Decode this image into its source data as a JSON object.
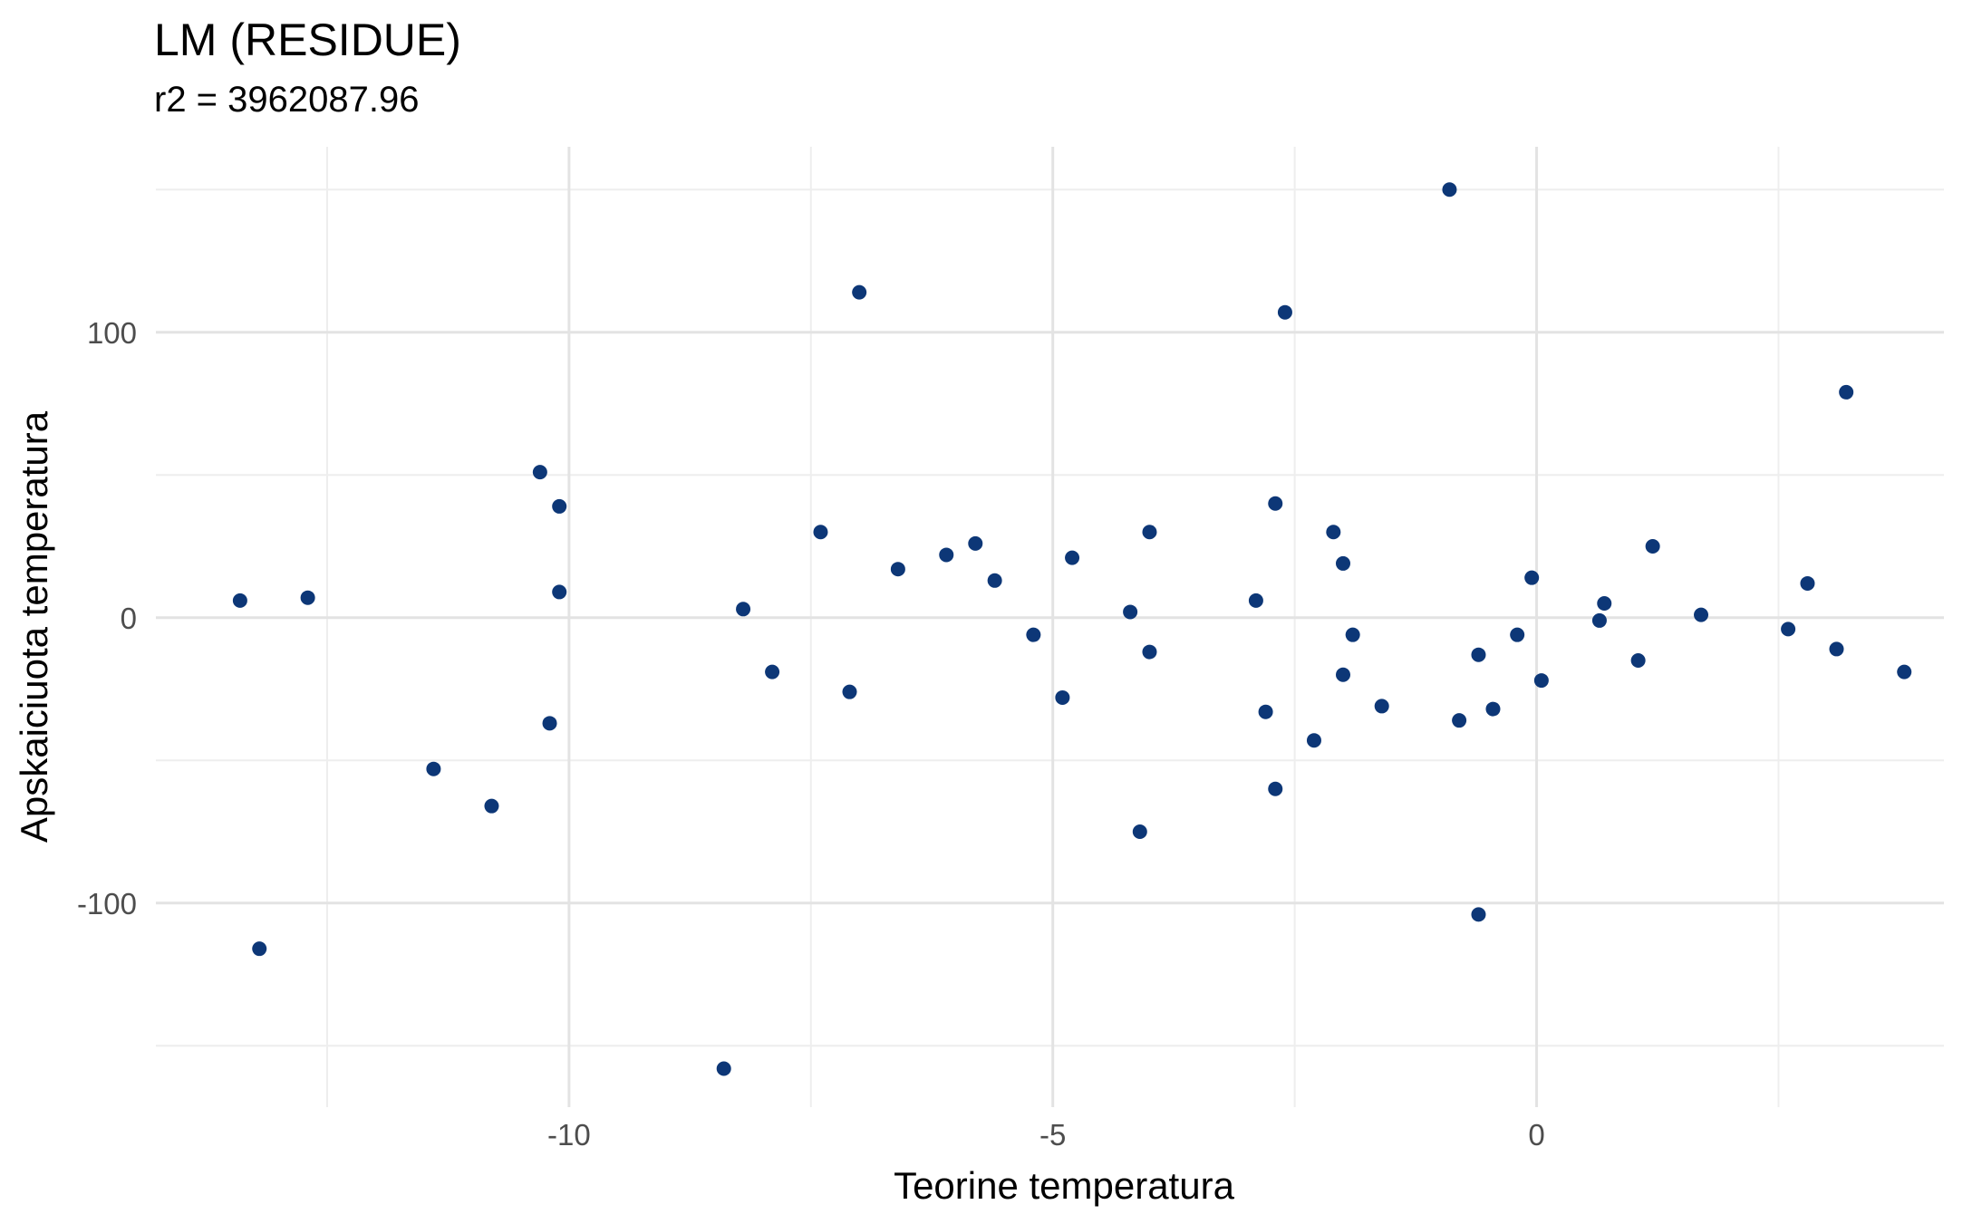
{
  "chart_data": {
    "type": "scatter",
    "title": "LM (RESIDUE)",
    "subtitle": "r2 = 3962087.96",
    "xlabel": "Teorine temperatura",
    "ylabel": "Apskaiciuota temperatura",
    "xlim": [
      -14.27,
      4.21
    ],
    "ylim": [
      -171.5,
      165
    ],
    "x_ticks": [
      -10,
      -5,
      0
    ],
    "x_tick_labels": [
      "-10",
      "-5",
      "0"
    ],
    "y_ticks": [
      -100,
      0,
      100
    ],
    "y_tick_labels": [
      "-100",
      "0",
      "100"
    ],
    "grid": true,
    "point_color": "#0d3777",
    "points": [
      {
        "x": -13.4,
        "y": 6
      },
      {
        "x": -13.2,
        "y": -116
      },
      {
        "x": -12.7,
        "y": 7
      },
      {
        "x": -11.4,
        "y": -53
      },
      {
        "x": -10.8,
        "y": -66
      },
      {
        "x": -10.3,
        "y": 51
      },
      {
        "x": -10.2,
        "y": -37
      },
      {
        "x": -10.1,
        "y": 39
      },
      {
        "x": -10.1,
        "y": 9
      },
      {
        "x": -8.4,
        "y": -158
      },
      {
        "x": -8.2,
        "y": 3
      },
      {
        "x": -7.9,
        "y": -19
      },
      {
        "x": -7.4,
        "y": 30
      },
      {
        "x": -7.0,
        "y": 114
      },
      {
        "x": -7.1,
        "y": -26
      },
      {
        "x": -6.6,
        "y": 17
      },
      {
        "x": -6.1,
        "y": 22
      },
      {
        "x": -5.8,
        "y": 26
      },
      {
        "x": -5.6,
        "y": 13
      },
      {
        "x": -5.2,
        "y": -6
      },
      {
        "x": -4.9,
        "y": -28
      },
      {
        "x": -4.8,
        "y": 21
      },
      {
        "x": -4.2,
        "y": 2
      },
      {
        "x": -4.1,
        "y": -75
      },
      {
        "x": -4.0,
        "y": 30
      },
      {
        "x": -4.0,
        "y": -12
      },
      {
        "x": -2.9,
        "y": 6
      },
      {
        "x": -2.8,
        "y": -33
      },
      {
        "x": -2.7,
        "y": 40
      },
      {
        "x": -2.7,
        "y": -60
      },
      {
        "x": -2.6,
        "y": 107
      },
      {
        "x": -2.3,
        "y": -43
      },
      {
        "x": -2.1,
        "y": 30
      },
      {
        "x": -2.0,
        "y": 19
      },
      {
        "x": -2.0,
        "y": -20
      },
      {
        "x": -1.9,
        "y": -6
      },
      {
        "x": -1.6,
        "y": -31
      },
      {
        "x": -0.9,
        "y": 150
      },
      {
        "x": -0.8,
        "y": -36
      },
      {
        "x": -0.6,
        "y": -104
      },
      {
        "x": -0.6,
        "y": -13
      },
      {
        "x": -0.45,
        "y": -32
      },
      {
        "x": -0.2,
        "y": -6
      },
      {
        "x": -0.05,
        "y": 14
      },
      {
        "x": 0.05,
        "y": -22
      },
      {
        "x": 0.65,
        "y": -1
      },
      {
        "x": 0.7,
        "y": 5
      },
      {
        "x": 1.05,
        "y": -15
      },
      {
        "x": 1.2,
        "y": 25
      },
      {
        "x": 1.7,
        "y": 1
      },
      {
        "x": 2.6,
        "y": -4
      },
      {
        "x": 2.8,
        "y": 12
      },
      {
        "x": 3.1,
        "y": -11
      },
      {
        "x": 3.2,
        "y": 79
      },
      {
        "x": 3.8,
        "y": -19
      }
    ]
  }
}
